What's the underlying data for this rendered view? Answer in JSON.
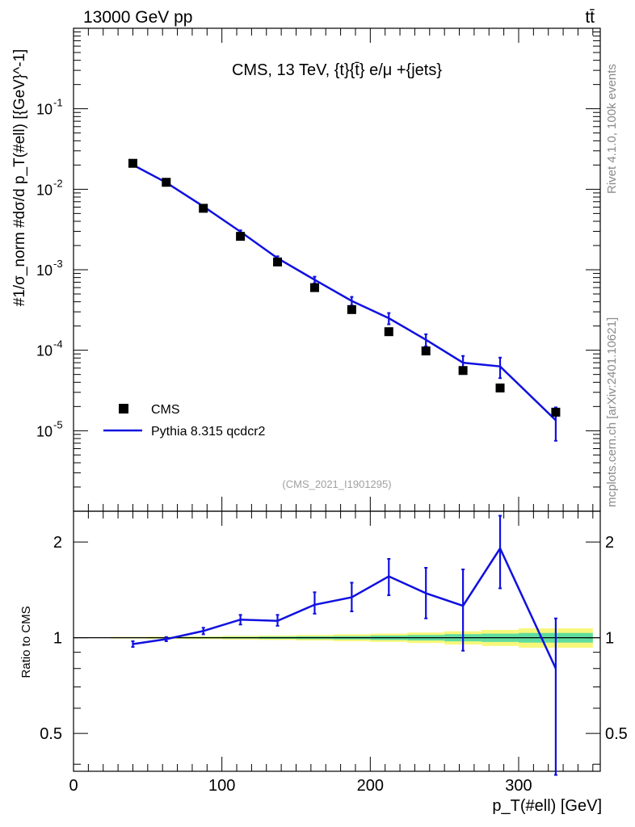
{
  "header": {
    "left": "13000 GeV pp",
    "right": "tt̄"
  },
  "side_labels": {
    "rivet": "Rivet 4.1.0,  100k events",
    "mcplots": "mcplots.cern.ch [arXiv:2401.10621]"
  },
  "chart_data": [
    {
      "type": "scatter",
      "panel": "main",
      "title": "CMS, 13 TeV, {t}{t̄} e/μ +{jets}",
      "watermark": "(CMS_2021_I1901295)",
      "ylabel": "#1/σ_norm #dσ/d p_T(#ell) [{GeV}^-1]",
      "yscale": "log",
      "xlim": [
        0,
        355
      ],
      "ylim": [
        1e-06,
        1
      ],
      "y_tick_labels": [
        "10^-5",
        "10^-4",
        "10^-3",
        "10^-2",
        "10^-1"
      ],
      "legend_position": "bottom-left",
      "series": [
        {
          "name": "CMS",
          "style": "marker-square",
          "color": "#000000",
          "x": [
            40,
            62.5,
            87.5,
            112.5,
            137.5,
            162.5,
            187.5,
            212.5,
            237.5,
            262.5,
            287.5,
            325
          ],
          "y": [
            0.021,
            0.0122,
            0.0058,
            0.0026,
            0.00125,
            0.0006,
            0.00032,
            0.00017,
            9.8e-05,
            5.6e-05,
            3.4e-05,
            1.7e-05
          ]
        },
        {
          "name": "Pythia 8.315 qcdcr2",
          "style": "line",
          "color": "#1010e0",
          "x": [
            40,
            62.5,
            87.5,
            112.5,
            137.5,
            162.5,
            187.5,
            212.5,
            237.5,
            262.5,
            287.5,
            325
          ],
          "y": [
            0.0201,
            0.0121,
            0.00612,
            0.00297,
            0.00139,
            0.00075,
            0.00041,
            0.00025,
            0.000135,
            7e-05,
            6.3e-05,
            1.35e-05
          ],
          "yerr": [
            0.0003,
            0.0002,
            0.00013,
            0.00012,
            8e-05,
            7e-05,
            5e-05,
            4e-05,
            2.3e-05,
            1.5e-05,
            1.8e-05,
            6e-06
          ]
        }
      ]
    },
    {
      "type": "line",
      "panel": "ratio",
      "xlabel": "p_T(#ell) [GeV]",
      "ylabel": "Ratio to CMS",
      "yscale": "log",
      "xlim": [
        0,
        355
      ],
      "ylim": [
        0.38,
        2.5
      ],
      "y_ticks": [
        0.5,
        1,
        2
      ],
      "y_tick_labels": [
        "0.5",
        "1",
        "2"
      ],
      "x_ticks": [
        0,
        100,
        200,
        300
      ],
      "x_tick_labels": [
        "0",
        "100",
        "200",
        "300"
      ],
      "series": [
        {
          "name": "Pythia 8.315 qcdcr2 / CMS",
          "color": "#1010e0",
          "x": [
            40,
            62.5,
            87.5,
            112.5,
            137.5,
            162.5,
            187.5,
            212.5,
            237.5,
            262.5,
            287.5,
            325
          ],
          "y": [
            0.955,
            0.99,
            1.05,
            1.14,
            1.13,
            1.27,
            1.34,
            1.56,
            1.38,
            1.26,
            1.91,
            0.8
          ],
          "ylo": [
            0.935,
            0.975,
            1.025,
            1.1,
            1.09,
            1.19,
            1.21,
            1.36,
            1.15,
            0.91,
            1.43,
            0.37
          ],
          "yhi": [
            0.975,
            1.005,
            1.075,
            1.18,
            1.18,
            1.39,
            1.49,
            1.77,
            1.66,
            1.64,
            2.42,
            1.15
          ]
        }
      ],
      "uncertainty_bands": {
        "x_edges": [
          25,
          50,
          75,
          100,
          125,
          150,
          175,
          200,
          225,
          250,
          275,
          300,
          350
        ],
        "inner_half": [
          0.003,
          0.004,
          0.005,
          0.006,
          0.008,
          0.01,
          0.012,
          0.016,
          0.02,
          0.026,
          0.03,
          0.035
        ],
        "outer_half": [
          0.006,
          0.008,
          0.01,
          0.013,
          0.016,
          0.02,
          0.025,
          0.03,
          0.038,
          0.048,
          0.058,
          0.07
        ],
        "inner_color": "#5fdd9f",
        "outer_color": "#f7f77a"
      }
    }
  ]
}
